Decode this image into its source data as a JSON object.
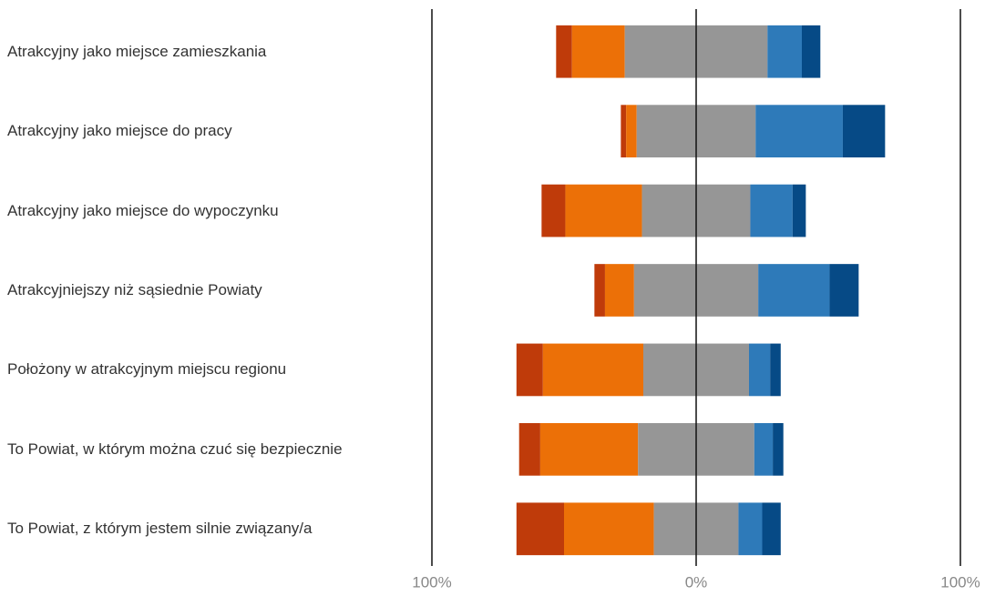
{
  "chart_data": {
    "type": "diverging_bar",
    "categories": [
      "Atrakcyjny jako miejsce zamieszkania",
      "Atrakcyjny jako miejsce do pracy",
      "Atrakcyjny jako miejsce do wypoczynku",
      "Atrakcyjniejszy niż sąsiednie Powiaty",
      "Położony w atrakcyjnym miejscu regionu",
      "To Powiat, w którym można czuć się bezpiecznie",
      "To Powiat, z którym jestem silnie związany/a"
    ],
    "series": [
      {
        "color": "#bf3b0a",
        "values": [
          6,
          2,
          9,
          4,
          10,
          8,
          18
        ]
      },
      {
        "color": "#ec7007",
        "values": [
          20,
          4,
          29,
          11,
          38,
          37,
          34
        ]
      },
      {
        "color": "#969696",
        "values": [
          54,
          45,
          41,
          47,
          40,
          44,
          32
        ]
      },
      {
        "color": "#2e7ab9",
        "values": [
          13,
          33,
          16,
          27,
          8,
          7,
          9
        ]
      },
      {
        "color": "#064a86",
        "values": [
          7,
          16,
          5,
          11,
          4,
          4,
          7
        ]
      }
    ],
    "xlim": [
      -100,
      100
    ],
    "xticks": [
      {
        "value": -100,
        "label": "100%"
      },
      {
        "value": 0,
        "label": "0%"
      },
      {
        "value": 100,
        "label": "100%"
      }
    ]
  }
}
